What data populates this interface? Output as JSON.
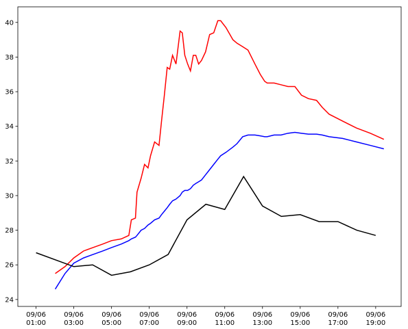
{
  "chart_data": {
    "type": "line",
    "xlim": [
      "09/06 00:02",
      "09/06 20:21"
    ],
    "ylim": [
      23.6,
      40.9
    ],
    "yticks": [
      24,
      26,
      28,
      30,
      32,
      34,
      36,
      38,
      40
    ],
    "xticks": [
      {
        "value": "09/06 01:00",
        "label": [
          "09/06",
          "01:00"
        ]
      },
      {
        "value": "09/06 03:00",
        "label": [
          "09/06",
          "03:00"
        ]
      },
      {
        "value": "09/06 05:00",
        "label": [
          "09/06",
          "05:00"
        ]
      },
      {
        "value": "09/06 07:00",
        "label": [
          "09/06",
          "07:00"
        ]
      },
      {
        "value": "09/06 09:00",
        "label": [
          "09/06",
          "09:00"
        ]
      },
      {
        "value": "09/06 11:00",
        "label": [
          "09/06",
          "11:00"
        ]
      },
      {
        "value": "09/06 13:00",
        "label": [
          "09/06",
          "13:00"
        ]
      },
      {
        "value": "09/06 15:00",
        "label": [
          "09/06",
          "15:00"
        ]
      },
      {
        "value": "09/06 17:00",
        "label": [
          "09/06",
          "17:00"
        ]
      },
      {
        "value": "09/06 19:00",
        "label": [
          "09/06",
          "19:00"
        ]
      }
    ],
    "series": [
      {
        "color": "#ff0000",
        "x": [
          "09/06 02:01",
          "09/06 02:32",
          "09/06 03:00",
          "09/06 03:31",
          "09/06 04:01",
          "09/06 04:32",
          "09/06 05:00",
          "09/06 05:31",
          "09/06 05:55",
          "09/06 06:03",
          "09/06 06:16",
          "09/06 06:21",
          "09/06 06:34",
          "09/06 06:45",
          "09/06 06:56",
          "09/06 07:04",
          "09/06 07:17",
          "09/06 07:31",
          "09/06 07:39",
          "09/06 07:48",
          "09/06 07:57",
          "09/06 08:05",
          "09/06 08:14",
          "09/06 08:25",
          "09/06 08:38",
          "09/06 08:45",
          "09/06 08:53",
          "09/06 09:02",
          "09/06 09:11",
          "09/06 09:20",
          "09/06 09:28",
          "09/06 09:37",
          "09/06 09:46",
          "09/06 09:59",
          "09/06 10:12",
          "09/06 10:25",
          "09/06 10:38",
          "09/06 10:47",
          "09/06 11:04",
          "09/06 11:26",
          "09/06 11:39",
          "09/06 11:57",
          "09/06 12:14",
          "09/06 12:36",
          "09/06 12:53",
          "09/06 13:07",
          "09/06 13:15",
          "09/06 13:37",
          "09/06 13:59",
          "09/06 14:21",
          "09/06 14:43",
          "09/06 15:04",
          "09/06 15:26",
          "09/06 15:52",
          "09/06 16:10",
          "09/06 16:32",
          "09/06 17:15",
          "09/06 17:59",
          "09/06 18:43",
          "09/06 19:26"
        ],
        "values": [
          25.5,
          25.9,
          26.4,
          26.8,
          27.0,
          27.2,
          27.4,
          27.5,
          27.7,
          28.6,
          28.7,
          30.2,
          31.0,
          31.8,
          31.6,
          32.3,
          33.1,
          32.9,
          34.3,
          35.8,
          37.4,
          37.3,
          38.1,
          37.6,
          39.5,
          39.4,
          38.1,
          37.6,
          37.2,
          38.1,
          38.1,
          37.6,
          37.8,
          38.3,
          39.3,
          39.4,
          40.1,
          40.1,
          39.7,
          39.0,
          38.8,
          38.6,
          38.4,
          37.6,
          37.0,
          36.6,
          36.5,
          36.5,
          36.4,
          36.3,
          36.3,
          35.8,
          35.6,
          35.5,
          35.1,
          34.7,
          34.3,
          33.9,
          33.6,
          33.25
        ]
      },
      {
        "color": "#0000ff",
        "x": [
          "09/06 02:01",
          "09/06 02:32",
          "09/06 03:00",
          "09/06 03:31",
          "09/06 04:01",
          "09/06 04:32",
          "09/06 05:00",
          "09/06 05:31",
          "09/06 05:55",
          "09/06 06:03",
          "09/06 06:16",
          "09/06 06:21",
          "09/06 06:34",
          "09/06 06:45",
          "09/06 06:56",
          "09/06 07:04",
          "09/06 07:17",
          "09/06 07:31",
          "09/06 07:39",
          "09/06 07:48",
          "09/06 07:57",
          "09/06 08:05",
          "09/06 08:14",
          "09/06 08:25",
          "09/06 08:38",
          "09/06 08:45",
          "09/06 08:53",
          "09/06 09:02",
          "09/06 09:11",
          "09/06 09:20",
          "09/06 09:28",
          "09/06 09:37",
          "09/06 09:46",
          "09/06 09:59",
          "09/06 10:12",
          "09/06 10:25",
          "09/06 10:38",
          "09/06 10:47",
          "09/06 11:04",
          "09/06 11:26",
          "09/06 11:39",
          "09/06 11:57",
          "09/06 12:14",
          "09/06 12:36",
          "09/06 12:53",
          "09/06 13:07",
          "09/06 13:15",
          "09/06 13:37",
          "09/06 13:59",
          "09/06 14:21",
          "09/06 14:43",
          "09/06 15:04",
          "09/06 15:26",
          "09/06 15:52",
          "09/06 16:10",
          "09/06 16:32",
          "09/06 17:15",
          "09/06 17:59",
          "09/06 18:43",
          "09/06 19:26"
        ],
        "values": [
          24.6,
          25.5,
          26.1,
          26.4,
          26.6,
          26.8,
          27.0,
          27.2,
          27.4,
          27.5,
          27.6,
          27.7,
          28.0,
          28.1,
          28.3,
          28.4,
          28.6,
          28.7,
          28.9,
          29.1,
          29.3,
          29.5,
          29.7,
          29.8,
          30.0,
          30.2,
          30.3,
          30.3,
          30.4,
          30.6,
          30.7,
          30.8,
          30.9,
          31.2,
          31.5,
          31.8,
          32.1,
          32.3,
          32.5,
          32.8,
          33.0,
          33.4,
          33.5,
          33.5,
          33.45,
          33.4,
          33.4,
          33.5,
          33.5,
          33.6,
          33.65,
          33.6,
          33.55,
          33.55,
          33.5,
          33.4,
          33.3,
          33.1,
          32.9,
          32.7
        ]
      },
      {
        "color": "#000000",
        "x": [
          "09/06 01:00",
          "09/06 03:00",
          "09/06 04:00",
          "09/06 05:00",
          "09/06 06:00",
          "09/06 07:00",
          "09/06 08:00",
          "09/06 09:00",
          "09/06 10:00",
          "09/06 11:00",
          "09/06 12:00",
          "09/06 13:00",
          "09/06 14:00",
          "09/06 15:00",
          "09/06 16:00",
          "09/06 17:00",
          "09/06 18:00",
          "09/06 19:00"
        ],
        "values": [
          26.7,
          25.9,
          26.0,
          25.4,
          25.6,
          26.0,
          26.6,
          28.6,
          29.5,
          29.2,
          31.1,
          29.4,
          28.8,
          28.9,
          28.5,
          28.5,
          28.0,
          27.7
        ]
      }
    ]
  }
}
